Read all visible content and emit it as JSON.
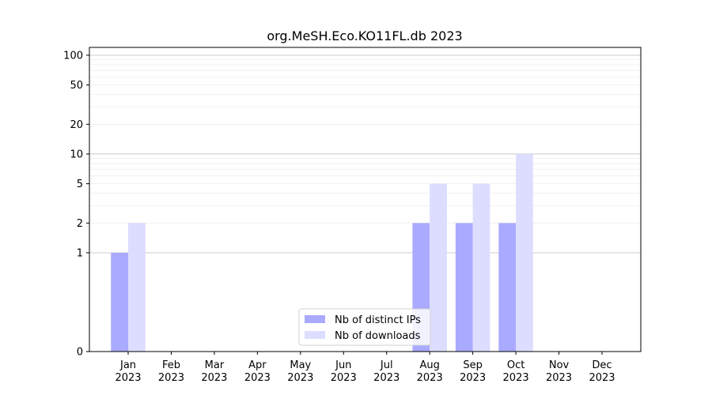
{
  "chart_data": {
    "type": "bar",
    "title": "org.MeSH.Eco.KO11FL.db 2023",
    "xlabel": "",
    "ylabel": "",
    "y_scale": "symlog",
    "ylim": [
      0,
      120
    ],
    "y_ticks": [
      0,
      1,
      2,
      5,
      10,
      20,
      50,
      100
    ],
    "grid": "horizontal",
    "legend_position": "bottom-center",
    "categories": [
      [
        "Jan",
        "2023"
      ],
      [
        "Feb",
        "2023"
      ],
      [
        "Mar",
        "2023"
      ],
      [
        "Apr",
        "2023"
      ],
      [
        "May",
        "2023"
      ],
      [
        "Jun",
        "2023"
      ],
      [
        "Jul",
        "2023"
      ],
      [
        "Aug",
        "2023"
      ],
      [
        "Sep",
        "2023"
      ],
      [
        "Oct",
        "2023"
      ],
      [
        "Nov",
        "2023"
      ],
      [
        "Dec",
        "2023"
      ]
    ],
    "series": [
      {
        "name": "Nb of distinct IPs",
        "color": "#aaaaff",
        "values": [
          1,
          0,
          0,
          0,
          0,
          0,
          0,
          2,
          2,
          2,
          0,
          0
        ]
      },
      {
        "name": "Nb of downloads",
        "color": "#ddddff",
        "values": [
          2,
          0,
          0,
          0,
          0,
          0,
          0,
          5,
          5,
          10,
          0,
          0
        ]
      }
    ]
  }
}
